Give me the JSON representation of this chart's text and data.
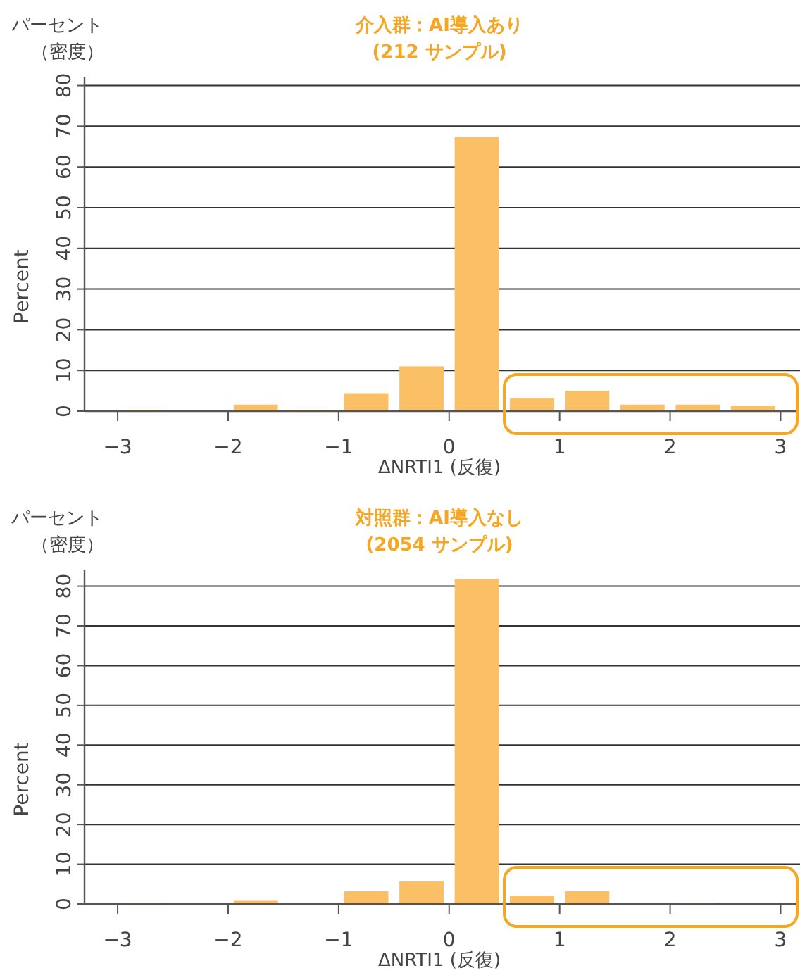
{
  "chart_data": [
    {
      "type": "histogram",
      "title": "介入群：AI導入あり",
      "subtitle": "(212 サンプル)",
      "xlabel": "ΔNRTI1 (反復)",
      "ylabel": "Percent",
      "annotations": [
        "パーセント",
        "（密度）"
      ],
      "bins": [
        -3,
        -2.5,
        -2,
        -1.5,
        -1,
        -0.5,
        0,
        0.5,
        1,
        1.5,
        2,
        2.5,
        3
      ],
      "values": [
        0.3,
        0,
        1.6,
        0.3,
        4.4,
        11,
        67.4,
        3.1,
        5,
        1.6,
        1.6,
        1.3
      ],
      "color": "#fbbf66",
      "xlim": [
        -3.3,
        3.15
      ],
      "ylim": [
        0,
        82
      ],
      "xticks": [
        -3,
        -2,
        -1,
        0,
        1,
        2,
        3
      ],
      "yticks": [
        0,
        10,
        20,
        30,
        40,
        50,
        60,
        70,
        80
      ],
      "grid": "y"
    },
    {
      "type": "histogram",
      "title": "対照群：AI導入なし",
      "subtitle": "(2054 サンプル)",
      "xlabel": "ΔNRTI1 (反復)",
      "ylabel": "Percent",
      "annotations": [
        "パーセント",
        "（密度）"
      ],
      "bins": [
        -3,
        -2.5,
        -2,
        -1.5,
        -1,
        -0.5,
        0,
        0.5,
        1,
        1.5,
        2,
        2.5,
        3
      ],
      "values": [
        0.3,
        0,
        0.8,
        0,
        3.2,
        5.7,
        81.8,
        2.1,
        3.2,
        0,
        0.3,
        0
      ],
      "color": "#fbbf66",
      "xlim": [
        -3.3,
        3.15
      ],
      "ylim": [
        0,
        84
      ],
      "xticks": [
        -3,
        -2,
        -1,
        0,
        1,
        2,
        3
      ],
      "yticks": [
        0,
        10,
        20,
        30,
        40,
        50,
        60,
        70,
        80
      ],
      "grid": "y"
    }
  ]
}
